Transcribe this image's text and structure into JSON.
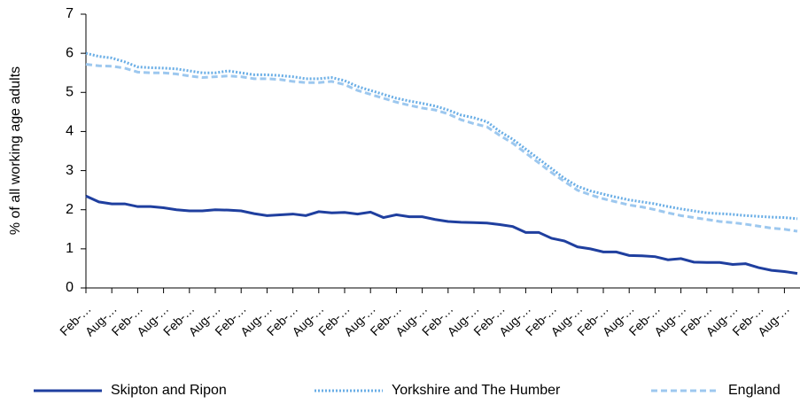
{
  "chart_data": {
    "type": "line",
    "y_label": "% of all working age adults",
    "categories": [
      "Feb-…",
      null,
      "Aug-…",
      null,
      "Feb-…",
      null,
      "Aug-…",
      null,
      "Feb-…",
      null,
      "Aug-…",
      null,
      "Feb-…",
      null,
      "Aug-…",
      null,
      "Feb-…",
      null,
      "Aug-…",
      null,
      "Feb-…",
      null,
      "Aug-…",
      null,
      "Feb-…",
      null,
      "Aug-…",
      null,
      "Feb-…",
      null,
      "Aug-…",
      null,
      "Feb-…",
      null,
      "Aug-…",
      null,
      "Feb-…",
      null,
      "Aug-…",
      null,
      "Feb-…",
      null,
      "Aug-…",
      null,
      "Feb-…",
      null,
      "Aug-…",
      null,
      "Feb-…",
      null,
      "Aug-…",
      null,
      "Feb-…",
      null,
      "Aug-…",
      null
    ],
    "series": [
      {
        "name": "Skipton and Ripon",
        "color": "#1f3f9f",
        "style": "solid",
        "values": [
          2.35,
          2.2,
          2.15,
          2.15,
          2.08,
          2.08,
          2.05,
          2.0,
          1.97,
          1.97,
          2.0,
          1.99,
          1.97,
          1.9,
          1.85,
          1.87,
          1.89,
          1.85,
          1.95,
          1.92,
          1.93,
          1.89,
          1.94,
          1.8,
          1.87,
          1.82,
          1.82,
          1.75,
          1.7,
          1.68,
          1.67,
          1.66,
          1.62,
          1.57,
          1.42,
          1.42,
          1.27,
          1.2,
          1.05,
          1.0,
          0.92,
          0.92,
          0.83,
          0.82,
          0.8,
          0.72,
          0.75,
          0.66,
          0.65,
          0.65,
          0.6,
          0.62,
          0.52,
          0.45,
          0.42,
          0.37
        ]
      },
      {
        "name": "Yorkshire and The Humber",
        "color": "#6aaee6",
        "style": "dotted",
        "values": [
          6.0,
          5.92,
          5.88,
          5.78,
          5.65,
          5.63,
          5.62,
          5.6,
          5.55,
          5.5,
          5.5,
          5.55,
          5.5,
          5.45,
          5.45,
          5.43,
          5.4,
          5.35,
          5.35,
          5.38,
          5.3,
          5.15,
          5.05,
          4.95,
          4.85,
          4.78,
          4.72,
          4.65,
          4.55,
          4.42,
          4.35,
          4.25,
          4.0,
          3.8,
          3.55,
          3.3,
          3.05,
          2.8,
          2.6,
          2.48,
          2.4,
          2.32,
          2.25,
          2.2,
          2.15,
          2.08,
          2.02,
          1.97,
          1.92,
          1.9,
          1.88,
          1.85,
          1.83,
          1.81,
          1.8,
          1.77
        ]
      },
      {
        "name": "England",
        "color": "#9dc8ef",
        "style": "dashed",
        "values": [
          5.72,
          5.68,
          5.67,
          5.62,
          5.52,
          5.5,
          5.5,
          5.47,
          5.42,
          5.38,
          5.4,
          5.42,
          5.4,
          5.35,
          5.35,
          5.33,
          5.28,
          5.25,
          5.25,
          5.28,
          5.2,
          5.05,
          4.95,
          4.85,
          4.75,
          4.67,
          4.6,
          4.55,
          4.45,
          4.3,
          4.2,
          4.12,
          3.9,
          3.7,
          3.45,
          3.2,
          2.95,
          2.72,
          2.5,
          2.38,
          2.28,
          2.2,
          2.12,
          2.07,
          2.0,
          1.92,
          1.85,
          1.8,
          1.75,
          1.7,
          1.67,
          1.63,
          1.58,
          1.53,
          1.5,
          1.45
        ]
      }
    ],
    "ylim": [
      0,
      7
    ],
    "yticks": [
      0,
      1,
      2,
      3,
      4,
      5,
      6,
      7
    ],
    "grid": false,
    "legend": "bottom"
  }
}
